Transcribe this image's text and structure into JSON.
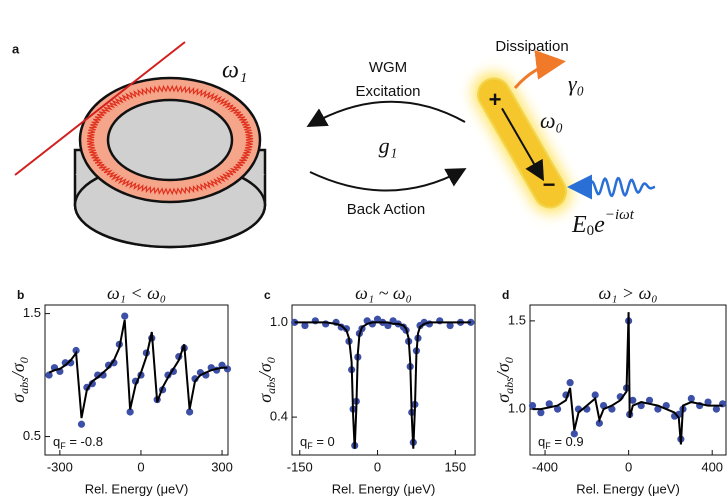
{
  "diagram": {
    "label": "a",
    "omega1": "ω₁",
    "wgm": [
      "WGM",
      "Excitation"
    ],
    "g1": "g₁",
    "back_action": "Back Action",
    "dissipation": "Dissipation",
    "gamma0": "γ₀",
    "omega0": "ω₀",
    "plus": "+",
    "minus": "−",
    "field": [
      "E",
      "0",
      "e",
      "−iωt"
    ]
  },
  "chart_data": [
    {
      "type": "line",
      "panel": "b",
      "title": "ω₁ < ω₀",
      "y_label": [
        "σ",
        "abs",
        "/σ",
        "0"
      ],
      "x_label": "Rel. Energy (μeV)",
      "annotation": [
        "q",
        "F",
        " = -0.8"
      ],
      "x": [
        -340,
        -320,
        -300,
        -280,
        -260,
        -240,
        -220,
        -200,
        -180,
        -160,
        -140,
        -120,
        -100,
        -80,
        -60,
        -40,
        -20,
        0,
        20,
        40,
        60,
        80,
        100,
        120,
        140,
        160,
        180,
        200,
        220,
        240,
        260,
        280,
        300,
        320
      ],
      "series": [
        {
          "mode": "markers",
          "color": "#3d50a8",
          "values": [
            1.0,
            1.06,
            1.03,
            1.1,
            1.1,
            1.2,
            0.6,
            0.9,
            0.93,
            1.0,
            1.0,
            1.08,
            1.1,
            1.25,
            1.48,
            0.7,
            0.95,
            1.0,
            1.18,
            1.3,
            0.8,
            0.88,
            1.0,
            1.03,
            1.15,
            1.22,
            0.7,
            0.97,
            1.02,
            1.0,
            1.06,
            1.04,
            1.08,
            1.05
          ]
        },
        {
          "mode": "line",
          "color": "#000000",
          "values": [
            1.02,
            1.04,
            1.05,
            1.08,
            1.12,
            1.18,
            0.65,
            0.88,
            0.95,
            0.98,
            1.02,
            1.06,
            1.12,
            1.22,
            1.45,
            0.72,
            0.92,
            1.02,
            1.15,
            1.35,
            0.78,
            0.9,
            0.98,
            1.05,
            1.12,
            1.25,
            0.72,
            0.95,
            1.0,
            1.02,
            1.04,
            1.05,
            1.06,
            1.06
          ]
        }
      ],
      "xlim": [
        -355,
        322
      ],
      "ylim": [
        0.35,
        1.57
      ],
      "xticks": [
        -300,
        0,
        300
      ],
      "yticks": [
        0.5,
        1.5
      ]
    },
    {
      "type": "line",
      "panel": "c",
      "title": "ω₁ ~ ω₀",
      "y_label": [
        "σ",
        "abs",
        "/σ",
        "0"
      ],
      "x_label": "Rel. Energy (μeV)",
      "annotation": [
        "q",
        "F",
        " = 0"
      ],
      "x": [
        -160,
        -140,
        -120,
        -100,
        -80,
        -70,
        -60,
        -55,
        -50,
        -47,
        -44,
        -41,
        -38,
        -35,
        -30,
        -20,
        -10,
        0,
        10,
        20,
        30,
        40,
        50,
        55,
        60,
        63,
        66,
        69,
        72,
        75,
        78,
        82,
        90,
        100,
        120,
        140,
        160,
        180
      ],
      "series": [
        {
          "mode": "markers",
          "color": "#3d50a8",
          "values": [
            1.0,
            0.98,
            1.01,
            0.99,
            1.0,
            0.97,
            0.96,
            0.88,
            0.7,
            0.45,
            0.22,
            0.5,
            0.78,
            0.93,
            0.96,
            1.01,
            0.99,
            1.02,
            1.0,
            0.98,
            1.01,
            0.99,
            0.97,
            0.95,
            0.88,
            0.72,
            0.43,
            0.24,
            0.48,
            0.82,
            0.9,
            0.98,
            1.0,
            0.99,
            1.01,
            0.98,
            1.0,
            1.0
          ]
        },
        {
          "mode": "line",
          "color": "#000000",
          "values": [
            1.0,
            1.0,
            1.0,
            1.0,
            0.99,
            0.98,
            0.95,
            0.9,
            0.75,
            0.4,
            0.2,
            0.45,
            0.8,
            0.92,
            0.97,
            0.99,
            1.0,
            1.0,
            1.0,
            1.0,
            0.99,
            0.99,
            0.98,
            0.96,
            0.9,
            0.75,
            0.4,
            0.2,
            0.45,
            0.8,
            0.93,
            0.97,
            0.99,
            1.0,
            1.0,
            1.0,
            1.0,
            1.0
          ]
        }
      ],
      "xlim": [
        -165,
        188
      ],
      "ylim": [
        0.16,
        1.11
      ],
      "xticks": [
        -150,
        0,
        150
      ],
      "yticks": [
        {
          "value": 0.4,
          "label": "0.4"
        },
        {
          "value": 1,
          "label": "1.0"
        }
      ]
    },
    {
      "type": "line",
      "panel": "d",
      "title": "ω₁ > ω₀",
      "y_label": [
        "σ",
        "abs",
        "/σ",
        "0"
      ],
      "x_label": "Rel. Energy (μeV)",
      "annotation": [
        "q",
        "F",
        " = 0.9"
      ],
      "x": [
        -460,
        -420,
        -380,
        -340,
        -300,
        -280,
        -260,
        -240,
        -200,
        -160,
        -140,
        -120,
        -80,
        -40,
        -10,
        0,
        5,
        20,
        60,
        100,
        140,
        180,
        220,
        240,
        250,
        260,
        300,
        340,
        380,
        420,
        450
      ],
      "series": [
        {
          "mode": "markers",
          "color": "#3d50a8",
          "values": [
            1.02,
            0.98,
            1.03,
            1.0,
            1.08,
            1.15,
            0.86,
            1.0,
            1.0,
            1.08,
            0.92,
            1.02,
            1.0,
            1.07,
            1.12,
            1.5,
            0.97,
            1.05,
            1.02,
            1.05,
            1.0,
            1.02,
            0.96,
            0.97,
            0.83,
            1.0,
            1.06,
            1.02,
            1.04,
            1.0,
            1.03
          ]
        },
        {
          "mode": "line",
          "color": "#000000",
          "values": [
            1.0,
            1.0,
            1.01,
            1.02,
            1.05,
            1.12,
            0.88,
            0.98,
            1.02,
            1.06,
            0.94,
            1.0,
            1.02,
            1.05,
            1.1,
            1.55,
            0.95,
            1.02,
            1.04,
            1.03,
            1.02,
            1.0,
            0.98,
            0.95,
            0.8,
            1.02,
            1.04,
            1.03,
            1.02,
            1.02,
            1.02
          ]
        }
      ],
      "xlim": [
        -472,
        466
      ],
      "ylim": [
        0.74,
        1.59
      ],
      "xticks": [
        -400,
        0,
        400
      ],
      "yticks": [
        {
          "value": 1,
          "label": "1.0"
        },
        1.5
      ]
    }
  ]
}
